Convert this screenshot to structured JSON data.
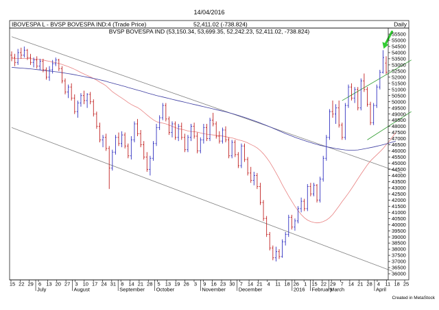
{
  "chart_data": {
    "type": "bar",
    "subtype": "ohlc",
    "top_date": "14/04/2016",
    "header_left": "IBOVESPA L - BVSP BOVESPA IND:4 (Trade Price)",
    "header_mid": "52,411.02 (-738.824)",
    "header_right": "Daily",
    "subtitle": "BVSP BOVESPA IND (53,150.34, 53,699.35, 52,242.23, 52,411.02, -738.824)",
    "credit": "Created in MetaStock",
    "ylim": [
      35500,
      56000
    ],
    "ytick_labels": [
      "55500",
      "55000",
      "54500",
      "54000",
      "53500",
      "53000",
      "52500",
      "52000",
      "51500",
      "51000",
      "50500",
      "50000",
      "49500",
      "49000",
      "48500",
      "48000",
      "47500",
      "47000",
      "46500",
      "46000",
      "45500",
      "45000",
      "44500",
      "44000",
      "43500",
      "43000",
      "42500",
      "42000",
      "41500",
      "41000",
      "40500",
      "40000",
      "39500",
      "39000",
      "38500",
      "38000",
      "37500",
      "37000",
      "36500",
      "36000"
    ],
    "xtick_labels": [
      "15",
      "22",
      "29",
      "6",
      "13",
      "20",
      "27",
      "3",
      "10",
      "17",
      "24",
      "31",
      "8",
      "14",
      "21",
      "28",
      "5",
      "13",
      "19",
      "26",
      "3",
      "9",
      "16",
      "23",
      "30",
      "7",
      "14",
      "21",
      "4",
      "11",
      "18",
      "26",
      "1",
      "15",
      "22",
      "29",
      "7",
      "14",
      "21",
      "28",
      "4",
      "11",
      "18",
      "25"
    ],
    "month_labels": [
      "July",
      "August",
      "September",
      "October",
      "November",
      "December",
      "2016",
      "February",
      "March",
      "April"
    ],
    "bars": [
      {
        "o": 53800,
        "h": 54100,
        "l": 53300,
        "c": 53600
      },
      {
        "o": 53600,
        "h": 53900,
        "l": 52900,
        "c": 53200
      },
      {
        "o": 53200,
        "h": 54300,
        "l": 53000,
        "c": 54000
      },
      {
        "o": 54000,
        "h": 54400,
        "l": 53500,
        "c": 53800
      },
      {
        "o": 53800,
        "h": 54500,
        "l": 53600,
        "c": 54200
      },
      {
        "o": 54200,
        "h": 54300,
        "l": 53400,
        "c": 53600
      },
      {
        "o": 53600,
        "h": 53900,
        "l": 53000,
        "c": 53200
      },
      {
        "o": 53200,
        "h": 53600,
        "l": 52800,
        "c": 53400
      },
      {
        "o": 53400,
        "h": 53700,
        "l": 52700,
        "c": 52900
      },
      {
        "o": 52900,
        "h": 53500,
        "l": 52600,
        "c": 53300
      },
      {
        "o": 53300,
        "h": 53500,
        "l": 52400,
        "c": 52600
      },
      {
        "o": 52600,
        "h": 52800,
        "l": 51800,
        "c": 52000
      },
      {
        "o": 52000,
        "h": 52900,
        "l": 51700,
        "c": 52600
      },
      {
        "o": 52600,
        "h": 53400,
        "l": 52300,
        "c": 53100
      },
      {
        "o": 53100,
        "h": 53600,
        "l": 52900,
        "c": 53400
      },
      {
        "o": 53400,
        "h": 53500,
        "l": 52500,
        "c": 52700
      },
      {
        "o": 52700,
        "h": 52900,
        "l": 51500,
        "c": 51700
      },
      {
        "o": 51700,
        "h": 51900,
        "l": 50600,
        "c": 50800
      },
      {
        "o": 50800,
        "h": 51400,
        "l": 50300,
        "c": 51200
      },
      {
        "o": 51200,
        "h": 51500,
        "l": 50100,
        "c": 50300
      },
      {
        "o": 50300,
        "h": 50600,
        "l": 49000,
        "c": 49200
      },
      {
        "o": 49200,
        "h": 50100,
        "l": 48700,
        "c": 49900
      },
      {
        "o": 49900,
        "h": 50700,
        "l": 49600,
        "c": 50500
      },
      {
        "o": 50500,
        "h": 50900,
        "l": 49800,
        "c": 50100
      },
      {
        "o": 50100,
        "h": 50700,
        "l": 49500,
        "c": 50600
      },
      {
        "o": 50600,
        "h": 50800,
        "l": 49800,
        "c": 50000
      },
      {
        "o": 50000,
        "h": 50200,
        "l": 48800,
        "c": 49000
      },
      {
        "o": 49000,
        "h": 49200,
        "l": 47800,
        "c": 48000
      },
      {
        "o": 48000,
        "h": 48300,
        "l": 46700,
        "c": 46900
      },
      {
        "o": 46900,
        "h": 47300,
        "l": 46300,
        "c": 47100
      },
      {
        "o": 47100,
        "h": 47400,
        "l": 46000,
        "c": 46200
      },
      {
        "o": 46200,
        "h": 46400,
        "l": 42900,
        "c": 44600
      },
      {
        "o": 44600,
        "h": 46100,
        "l": 44400,
        "c": 45900
      },
      {
        "o": 45900,
        "h": 47300,
        "l": 45700,
        "c": 47100
      },
      {
        "o": 47100,
        "h": 47500,
        "l": 46400,
        "c": 46600
      },
      {
        "o": 46600,
        "h": 47600,
        "l": 46300,
        "c": 47300
      },
      {
        "o": 47300,
        "h": 47500,
        "l": 46200,
        "c": 46400
      },
      {
        "o": 46400,
        "h": 46600,
        "l": 45400,
        "c": 45600
      },
      {
        "o": 45600,
        "h": 47200,
        "l": 45300,
        "c": 46900
      },
      {
        "o": 46900,
        "h": 48400,
        "l": 46700,
        "c": 48200
      },
      {
        "o": 48200,
        "h": 48600,
        "l": 47200,
        "c": 47400
      },
      {
        "o": 47400,
        "h": 47700,
        "l": 46300,
        "c": 46500
      },
      {
        "o": 46500,
        "h": 46800,
        "l": 45300,
        "c": 45500
      },
      {
        "o": 45500,
        "h": 45900,
        "l": 44300,
        "c": 44500
      },
      {
        "o": 44500,
        "h": 45600,
        "l": 44000,
        "c": 45400
      },
      {
        "o": 45400,
        "h": 46800,
        "l": 45200,
        "c": 46600
      },
      {
        "o": 46600,
        "h": 48200,
        "l": 46400,
        "c": 47900
      },
      {
        "o": 47900,
        "h": 48900,
        "l": 47700,
        "c": 48700
      },
      {
        "o": 48700,
        "h": 49900,
        "l": 48500,
        "c": 49700
      },
      {
        "o": 49700,
        "h": 49900,
        "l": 48400,
        "c": 48600
      },
      {
        "o": 48600,
        "h": 48800,
        "l": 47300,
        "c": 47500
      },
      {
        "o": 47500,
        "h": 48400,
        "l": 47100,
        "c": 48200
      },
      {
        "o": 48200,
        "h": 48400,
        "l": 46900,
        "c": 47100
      },
      {
        "o": 47100,
        "h": 48200,
        "l": 46800,
        "c": 48000
      },
      {
        "o": 48000,
        "h": 48300,
        "l": 46900,
        "c": 47100
      },
      {
        "o": 47100,
        "h": 47400,
        "l": 45900,
        "c": 46100
      },
      {
        "o": 46100,
        "h": 47300,
        "l": 45900,
        "c": 47100
      },
      {
        "o": 47100,
        "h": 48200,
        "l": 46800,
        "c": 48000
      },
      {
        "o": 48000,
        "h": 48300,
        "l": 47000,
        "c": 47200
      },
      {
        "o": 47200,
        "h": 47500,
        "l": 45800,
        "c": 46000
      },
      {
        "o": 46000,
        "h": 47100,
        "l": 45800,
        "c": 46900
      },
      {
        "o": 46900,
        "h": 48200,
        "l": 46600,
        "c": 47900
      },
      {
        "o": 47900,
        "h": 48200,
        "l": 46800,
        "c": 47000
      },
      {
        "o": 47000,
        "h": 48700,
        "l": 46800,
        "c": 48500
      },
      {
        "o": 48500,
        "h": 49100,
        "l": 48000,
        "c": 48200
      },
      {
        "o": 48200,
        "h": 48400,
        "l": 47000,
        "c": 47200
      },
      {
        "o": 47200,
        "h": 47600,
        "l": 46600,
        "c": 46800
      },
      {
        "o": 46800,
        "h": 47900,
        "l": 46600,
        "c": 47700
      },
      {
        "o": 47700,
        "h": 48000,
        "l": 46700,
        "c": 46900
      },
      {
        "o": 46900,
        "h": 47100,
        "l": 45400,
        "c": 45600
      },
      {
        "o": 45600,
        "h": 46900,
        "l": 45400,
        "c": 46700
      },
      {
        "o": 46700,
        "h": 46900,
        "l": 45500,
        "c": 45700
      },
      {
        "o": 45700,
        "h": 45900,
        "l": 44600,
        "c": 44800
      },
      {
        "o": 44800,
        "h": 46600,
        "l": 44600,
        "c": 46400
      },
      {
        "o": 46400,
        "h": 46600,
        "l": 45100,
        "c": 45300
      },
      {
        "o": 45300,
        "h": 45500,
        "l": 44000,
        "c": 44200
      },
      {
        "o": 44200,
        "h": 44700,
        "l": 43400,
        "c": 43600
      },
      {
        "o": 43600,
        "h": 44300,
        "l": 43200,
        "c": 44000
      },
      {
        "o": 44000,
        "h": 44200,
        "l": 42900,
        "c": 43100
      },
      {
        "o": 43100,
        "h": 43400,
        "l": 41600,
        "c": 41800
      },
      {
        "o": 41800,
        "h": 42000,
        "l": 40300,
        "c": 40500
      },
      {
        "o": 40500,
        "h": 40700,
        "l": 39000,
        "c": 39200
      },
      {
        "o": 39200,
        "h": 39400,
        "l": 37900,
        "c": 38100
      },
      {
        "o": 38100,
        "h": 38300,
        "l": 37100,
        "c": 37300
      },
      {
        "o": 37300,
        "h": 38200,
        "l": 37000,
        "c": 37800
      },
      {
        "o": 37800,
        "h": 38000,
        "l": 37200,
        "c": 37400
      },
      {
        "o": 37400,
        "h": 38800,
        "l": 37300,
        "c": 38600
      },
      {
        "o": 38600,
        "h": 39400,
        "l": 38300,
        "c": 39200
      },
      {
        "o": 39200,
        "h": 40800,
        "l": 39000,
        "c": 40600
      },
      {
        "o": 40600,
        "h": 40800,
        "l": 39600,
        "c": 39800
      },
      {
        "o": 39800,
        "h": 40500,
        "l": 39500,
        "c": 40300
      },
      {
        "o": 40300,
        "h": 41500,
        "l": 40100,
        "c": 41300
      },
      {
        "o": 41300,
        "h": 42200,
        "l": 41000,
        "c": 41900
      },
      {
        "o": 41900,
        "h": 42100,
        "l": 41100,
        "c": 41300
      },
      {
        "o": 41300,
        "h": 43300,
        "l": 41100,
        "c": 43100
      },
      {
        "o": 43100,
        "h": 43400,
        "l": 42300,
        "c": 42500
      },
      {
        "o": 42500,
        "h": 43400,
        "l": 42300,
        "c": 43200
      },
      {
        "o": 43200,
        "h": 43300,
        "l": 41800,
        "c": 42000
      },
      {
        "o": 42000,
        "h": 43900,
        "l": 41800,
        "c": 43700
      },
      {
        "o": 43700,
        "h": 45600,
        "l": 43500,
        "c": 45400
      },
      {
        "o": 45400,
        "h": 47300,
        "l": 45200,
        "c": 47100
      },
      {
        "o": 47100,
        "h": 49400,
        "l": 46900,
        "c": 49200
      },
      {
        "o": 49200,
        "h": 50100,
        "l": 48700,
        "c": 49000
      },
      {
        "o": 49000,
        "h": 49800,
        "l": 48200,
        "c": 49500
      },
      {
        "o": 49500,
        "h": 50100,
        "l": 47900,
        "c": 48100
      },
      {
        "o": 48100,
        "h": 48300,
        "l": 46900,
        "c": 47100
      },
      {
        "o": 47100,
        "h": 49900,
        "l": 46900,
        "c": 49700
      },
      {
        "o": 49700,
        "h": 51400,
        "l": 49500,
        "c": 51200
      },
      {
        "o": 51200,
        "h": 51500,
        "l": 50100,
        "c": 50300
      },
      {
        "o": 50300,
        "h": 51200,
        "l": 49900,
        "c": 51000
      },
      {
        "o": 51000,
        "h": 51200,
        "l": 49300,
        "c": 49500
      },
      {
        "o": 49500,
        "h": 51900,
        "l": 49300,
        "c": 51700
      },
      {
        "o": 51700,
        "h": 52300,
        "l": 50800,
        "c": 51000
      },
      {
        "o": 51000,
        "h": 51200,
        "l": 49600,
        "c": 49800
      },
      {
        "o": 49800,
        "h": 50000,
        "l": 48100,
        "c": 48300
      },
      {
        "o": 48300,
        "h": 49900,
        "l": 48100,
        "c": 49700
      },
      {
        "o": 49700,
        "h": 51400,
        "l": 49500,
        "c": 51200
      },
      {
        "o": 51200,
        "h": 52600,
        "l": 51000,
        "c": 52400
      },
      {
        "o": 52400,
        "h": 54200,
        "l": 52300,
        "c": 53600
      },
      {
        "o": 53150,
        "h": 53700,
        "l": 52242,
        "c": 52411
      }
    ],
    "moving_averages": [
      {
        "period": 21,
        "color": "#e88080",
        "values": [
          53500,
          53520,
          53520,
          53520,
          53520,
          53520,
          53510,
          53490,
          53460,
          53440,
          53400,
          53340,
          53290,
          53230,
          53180,
          53120,
          53040,
          52950,
          52860,
          52760,
          52640,
          52510,
          52380,
          52260,
          52140,
          52030,
          51900,
          51760,
          51600,
          51460,
          51300,
          51060,
          50820,
          50640,
          50470,
          50300,
          50130,
          49940,
          49780,
          49650,
          49530,
          49360,
          49150,
          48930,
          48720,
          48530,
          48380,
          48300,
          48260,
          48200,
          48100,
          48000,
          47900,
          47800,
          47760,
          47700,
          47620,
          47580,
          47560,
          47530,
          47460,
          47400,
          47360,
          47330,
          47300,
          47260,
          47240,
          47210,
          47160,
          47100,
          47060,
          46990,
          46900,
          46840,
          46760,
          46650,
          46520,
          46400,
          46240,
          46030,
          45760,
          45450,
          45090,
          44670,
          44210,
          43750,
          43240,
          42780,
          42330,
          41900,
          41500,
          41140,
          40820,
          40560,
          40370,
          40250,
          40180,
          40140,
          40170,
          40250,
          40370,
          40560,
          40820,
          41160,
          41510,
          41880,
          42210,
          42560,
          42930,
          43320,
          43720,
          44110,
          44490,
          44860,
          45180,
          45430,
          45680,
          45930,
          46190,
          46500,
          46800,
          47140,
          47500
        ]
      },
      {
        "period": 200,
        "color": "#3a3aa0",
        "values": [
          52800,
          52780,
          52760,
          52740,
          52720,
          52700,
          52680,
          52650,
          52620,
          52590,
          52560,
          52530,
          52500,
          52470,
          52440,
          52410,
          52370,
          52330,
          52290,
          52250,
          52200,
          52150,
          52100,
          52050,
          52000,
          51950,
          51900,
          51850,
          51790,
          51730,
          51670,
          51590,
          51520,
          51450,
          51380,
          51310,
          51240,
          51160,
          51090,
          51020,
          50950,
          50880,
          50800,
          50720,
          50650,
          50580,
          50510,
          50450,
          50390,
          50330,
          50270,
          50200,
          50140,
          50080,
          50020,
          49960,
          49900,
          49840,
          49780,
          49720,
          49660,
          49600,
          49540,
          49480,
          49420,
          49360,
          49300,
          49240,
          49180,
          49110,
          49040,
          48970,
          48890,
          48810,
          48730,
          48640,
          48550,
          48460,
          48370,
          48270,
          48170,
          48070,
          47960,
          47850,
          47740,
          47630,
          47520,
          47410,
          47310,
          47210,
          47110,
          47020,
          46930,
          46840,
          46760,
          46680,
          46600,
          46530,
          46460,
          46400,
          46340,
          46290,
          46240,
          46190,
          46150,
          46110,
          46080,
          46060,
          46050,
          46060,
          46080,
          46120,
          46170,
          46220,
          46270,
          46320,
          46380,
          46440,
          46500,
          46570,
          46640,
          46720,
          46800
        ]
      }
    ],
    "trendlines": [
      {
        "color": "#808080",
        "from": {
          "bar": 0,
          "v": 55300
        },
        "to": {
          "bar": 124,
          "v": 44200
        }
      },
      {
        "color": "#808080",
        "from": {
          "bar": 0,
          "v": 47900
        },
        "to": {
          "bar": 121,
          "v": 36200
        }
      },
      {
        "color": "#2a9a2a",
        "from": {
          "bar": 105,
          "v": 50100
        },
        "to": {
          "bar": 127,
          "v": 53400
        }
      },
      {
        "color": "#2a9a2a",
        "from": {
          "bar": 113,
          "v": 46900
        },
        "to": {
          "bar": 127,
          "v": 49200
        }
      }
    ],
    "arrow_color": "#33cc33",
    "up_bar_color": "#3030c0",
    "down_bar_color": "#c02020"
  }
}
